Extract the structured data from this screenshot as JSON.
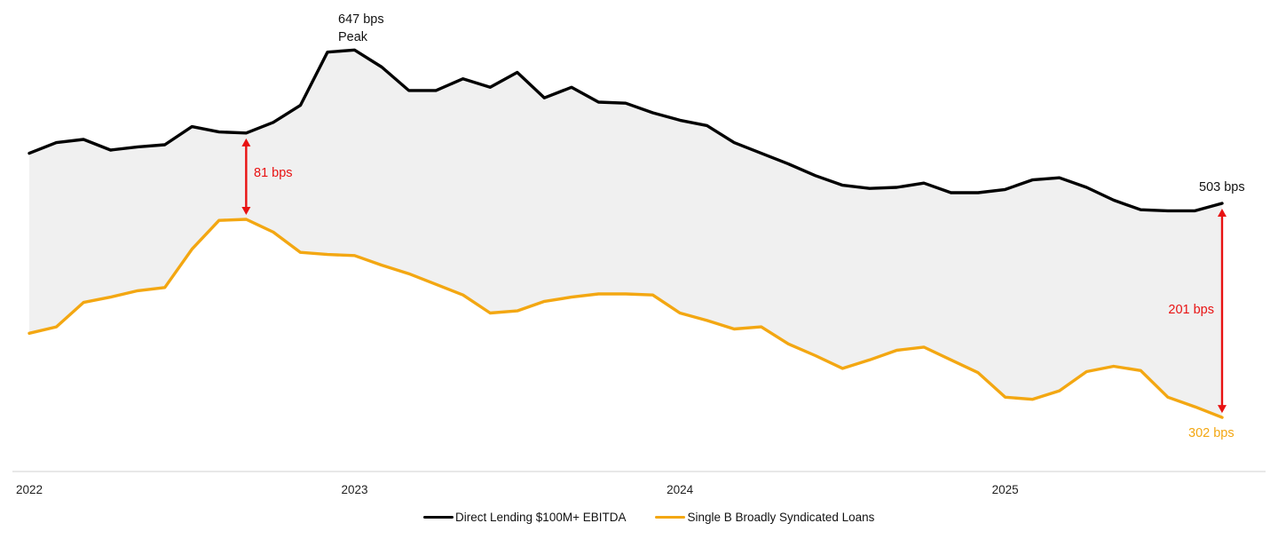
{
  "chart_data": {
    "type": "line",
    "unit": "bps",
    "x_unit": "month",
    "x_start": "2022-01",
    "x_end": "2025-09",
    "points_per_year": 12,
    "x_tick_labels": [
      "2022",
      "2023",
      "2024",
      "2025"
    ],
    "grid": "off",
    "y_axis": "hidden",
    "legend_position": "bottom-center",
    "fill_between": true,
    "series": [
      {
        "name": "Direct Lending $100M+ EBITDA",
        "color": "#000000",
        "values": [
          550,
          560,
          563,
          553,
          556,
          558,
          575,
          570,
          569,
          579,
          595,
          645,
          647,
          631,
          609,
          609,
          620,
          612,
          626,
          602,
          612,
          598,
          597,
          588,
          581,
          576,
          560,
          550,
          540,
          529,
          520,
          517,
          518,
          522,
          513,
          513,
          516,
          525,
          527,
          518,
          506,
          497,
          496,
          496,
          503
        ]
      },
      {
        "name": "Single B Broadly Syndicated Loans",
        "color": "#F3A712",
        "values": [
          381,
          387,
          410,
          415,
          421,
          424,
          460,
          487,
          488,
          476,
          457,
          455,
          454,
          445,
          437,
          427,
          417,
          400,
          402,
          411,
          415,
          418,
          418,
          417,
          400,
          393,
          385,
          387,
          371,
          360,
          348,
          356,
          365,
          368,
          356,
          344,
          321,
          319,
          327,
          345,
          350,
          346,
          321,
          312,
          302
        ]
      }
    ]
  },
  "annotations": {
    "peak": {
      "line1": "647 bps",
      "line2": "Peak",
      "series": "Direct Lending $100M+ EBITDA",
      "point_index": 12
    },
    "gap_2022": {
      "label": "81 bps",
      "value_bps": 81,
      "point_index": 8,
      "type": "double-arrow"
    },
    "direct_lending_end": {
      "label": "503 bps",
      "value_bps": 503,
      "point_index": 44
    },
    "gap_end": {
      "label": "201 bps",
      "value_bps": 201,
      "point_index": 44,
      "type": "double-arrow"
    },
    "bsl_end": {
      "label": "302 bps",
      "value_bps": 302,
      "point_index": 44
    }
  },
  "legend": {
    "items": [
      {
        "label": "Direct Lending $100M+ EBITDA",
        "color": "#000000"
      },
      {
        "label": "Single B Broadly Syndicated Loans",
        "color": "#F3A712"
      }
    ]
  },
  "x_axis": {
    "tick_labels": [
      "2022",
      "2023",
      "2024",
      "2025"
    ]
  },
  "colors": {
    "annotation_red": "#E81212",
    "area_fill": "#F0F0F0",
    "axis_line": "#D9D9D9",
    "tick_text": "#1F1F1F"
  }
}
